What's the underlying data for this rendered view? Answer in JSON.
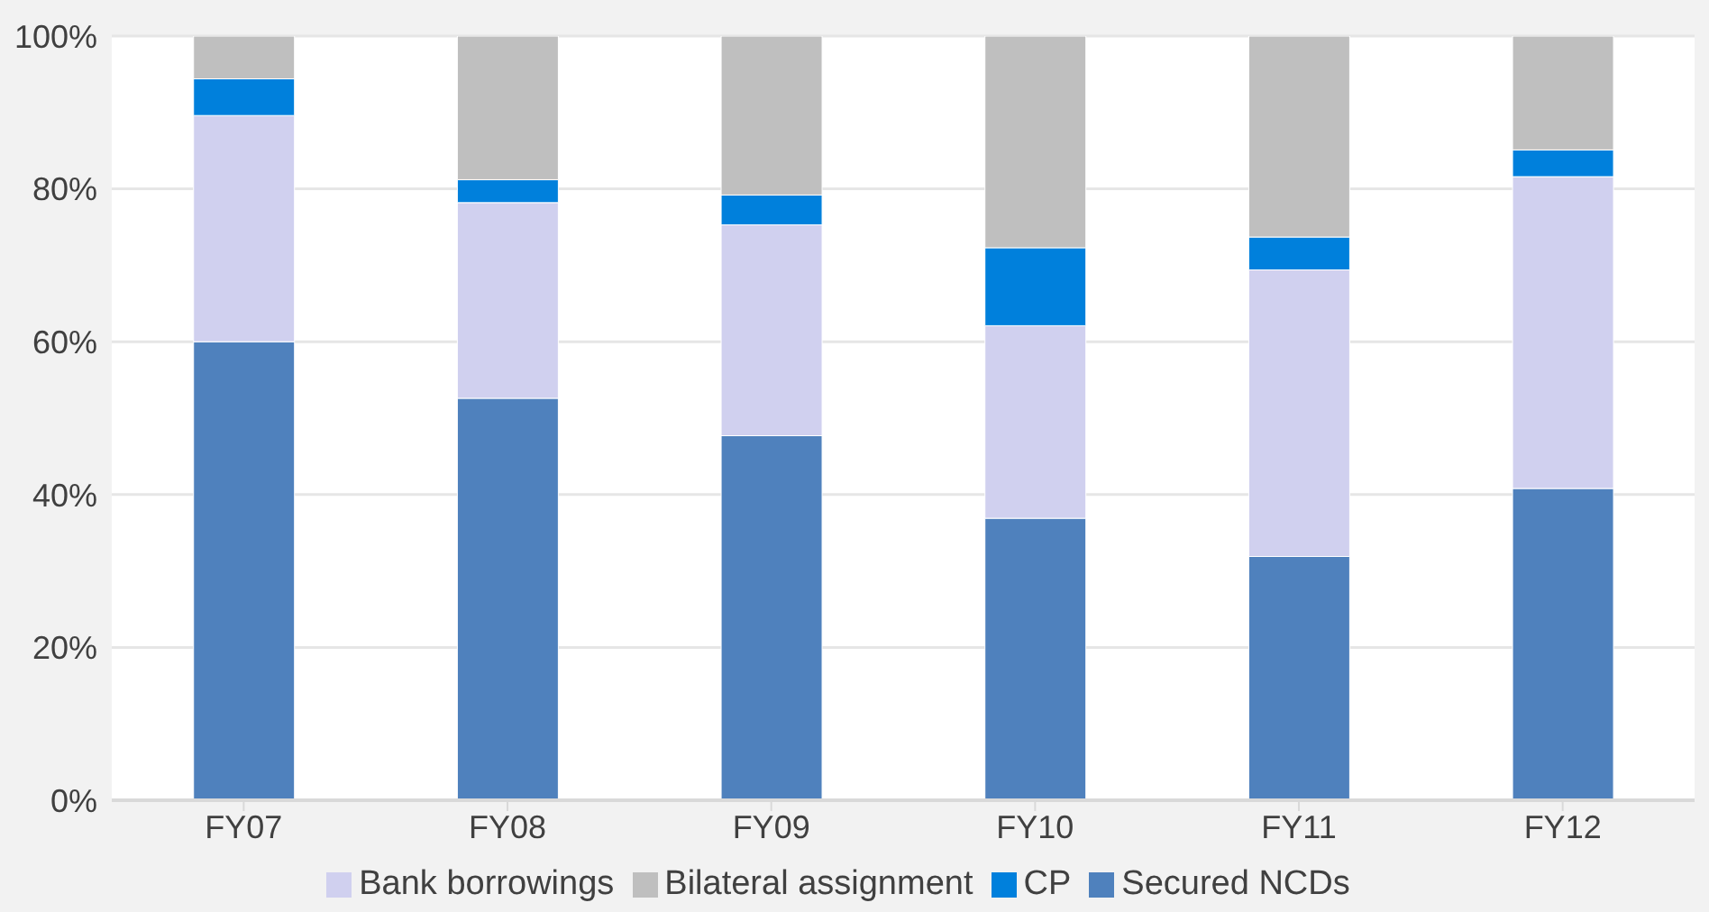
{
  "chart_data": {
    "type": "bar",
    "stacked": true,
    "categories": [
      "FY07",
      "FY08",
      "FY09",
      "FY10",
      "FY11",
      "FY12"
    ],
    "series": [
      {
        "name": "Secured NCDs",
        "color": "#4f81bd",
        "values": [
          60.0,
          52.6,
          47.7,
          36.9,
          31.9,
          40.8
        ]
      },
      {
        "name": "Bank borrowings",
        "color": "#d0d0ef",
        "values": [
          29.6,
          25.6,
          27.6,
          25.2,
          37.5,
          40.8
        ]
      },
      {
        "name": "CP",
        "color": "#0080dc",
        "values": [
          4.8,
          3.0,
          3.9,
          10.2,
          4.3,
          3.5
        ]
      },
      {
        "name": "Bilateral assignment",
        "color": "#bfbfbf",
        "values": [
          5.6,
          18.8,
          20.8,
          27.7,
          26.3,
          14.9
        ]
      }
    ],
    "ylim": [
      0,
      100
    ],
    "yticks": [
      {
        "value": 0,
        "label": "0%"
      },
      {
        "value": 20,
        "label": "20%"
      },
      {
        "value": 40,
        "label": "40%"
      },
      {
        "value": 60,
        "label": "60%"
      },
      {
        "value": 80,
        "label": "80%"
      },
      {
        "value": 100,
        "label": "100%"
      }
    ],
    "grid": "y",
    "legend": "bottom"
  }
}
